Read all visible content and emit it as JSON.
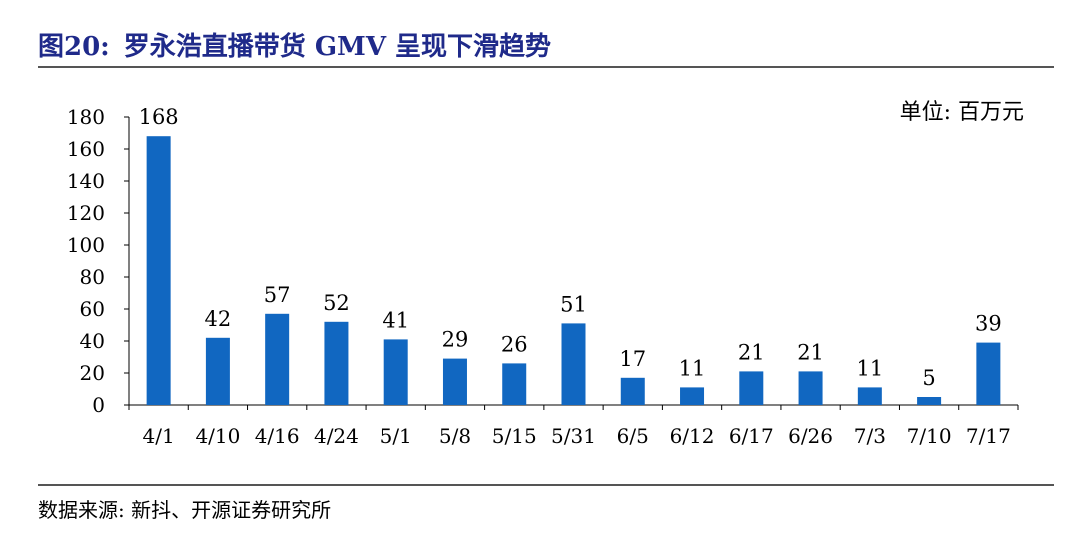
{
  "title": {
    "label": "图20:",
    "text": "罗永浩直播带货 GMV 呈现下滑趋势"
  },
  "unit": "单位: 百万元",
  "source": "数据来源: 新抖、开源证券研究所",
  "colors": {
    "bar": "#1167c1",
    "title": "#1f2a8a"
  },
  "chart_data": {
    "type": "bar",
    "categories": [
      "4/1",
      "4/10",
      "4/16",
      "4/24",
      "5/1",
      "5/8",
      "5/15",
      "5/31",
      "6/5",
      "6/12",
      "6/17",
      "6/26",
      "7/3",
      "7/10",
      "7/17"
    ],
    "values": [
      168,
      42,
      57,
      52,
      41,
      29,
      26,
      51,
      17,
      11,
      21,
      21,
      11,
      5,
      39
    ],
    "data_labels": [
      "168",
      "42",
      "57",
      "52",
      "41",
      "29",
      "26",
      "51",
      "17",
      "11",
      "21",
      "21",
      "11",
      "5",
      "39"
    ],
    "ylim": [
      0,
      180
    ],
    "yticks": [
      0,
      20,
      40,
      60,
      80,
      100,
      120,
      140,
      160,
      180
    ],
    "grid": false,
    "legend": "none"
  }
}
